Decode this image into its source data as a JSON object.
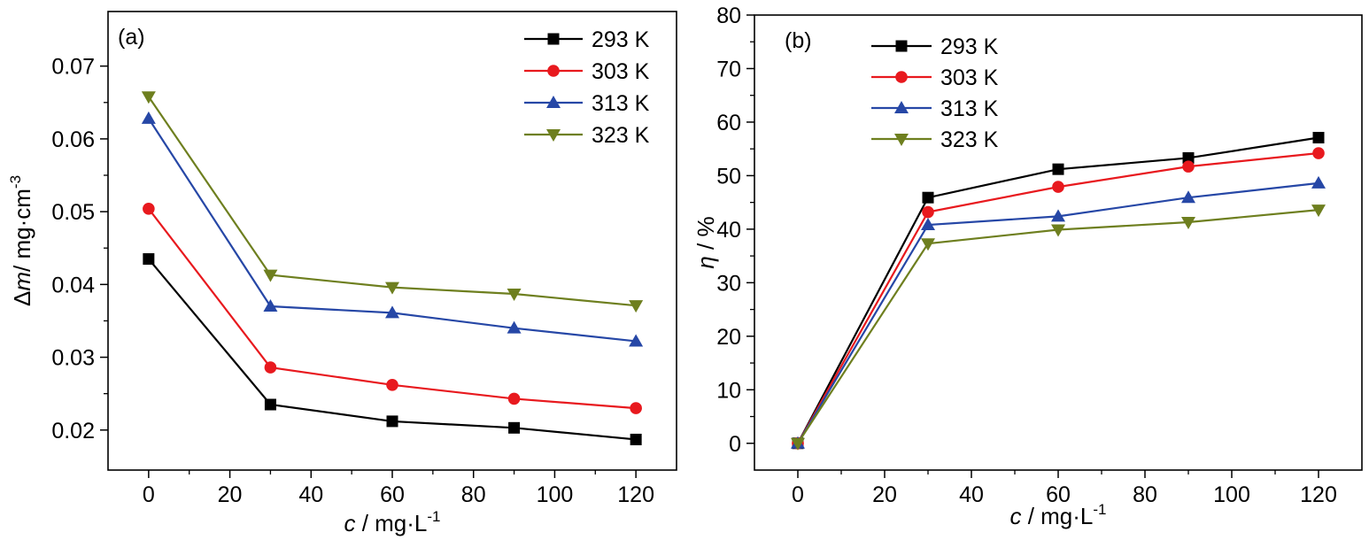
{
  "chart_data": [
    {
      "type": "line",
      "panel_label": "(a)",
      "ylabel_parts": {
        "delta": "Δ",
        "var": "m",
        "rest": "/ mg·cm",
        "sup": "-3"
      },
      "xlabel_parts": {
        "var": "c",
        "rest": " / mg·L",
        "sup": "-1"
      },
      "x": [
        0,
        30,
        60,
        90,
        120
      ],
      "xlim": [
        -10,
        130
      ],
      "ylim": [
        0.0145,
        0.0775
      ],
      "xticks": [
        0,
        20,
        40,
        60,
        80,
        100,
        120
      ],
      "xtick_labels": [
        "0",
        "20",
        "40",
        "60",
        "80",
        "100",
        "120"
      ],
      "yticks": [
        0.02,
        0.03,
        0.04,
        0.05,
        0.06,
        0.07
      ],
      "ytick_labels": [
        "0.02",
        "0.03",
        "0.04",
        "0.05",
        "0.06",
        "0.07"
      ],
      "grid": false,
      "legend_position": "top-right",
      "series": [
        {
          "name": "293 K",
          "color": "#000000",
          "marker": "square",
          "values": [
            0.0435,
            0.0235,
            0.0212,
            0.0203,
            0.0187
          ]
        },
        {
          "name": "303 K",
          "color": "#e8191e",
          "marker": "circle",
          "values": [
            0.0504,
            0.0286,
            0.0262,
            0.0243,
            0.023
          ]
        },
        {
          "name": "313 K",
          "color": "#2647a6",
          "marker": "triangle-up",
          "values": [
            0.0628,
            0.037,
            0.0361,
            0.034,
            0.0322
          ]
        },
        {
          "name": "323 K",
          "color": "#6e7f1f",
          "marker": "triangle-down",
          "values": [
            0.0658,
            0.0413,
            0.0396,
            0.0387,
            0.0371
          ]
        }
      ]
    },
    {
      "type": "line",
      "panel_label": "(b)",
      "ylabel_parts": {
        "var": "η",
        "rest": " / %"
      },
      "xlabel_parts": {
        "var": "c",
        "rest": " / mg·L",
        "sup": "-1"
      },
      "x": [
        0,
        30,
        60,
        90,
        120
      ],
      "xlim": [
        -10,
        130
      ],
      "ylim": [
        -5,
        80
      ],
      "xticks": [
        0,
        20,
        40,
        60,
        80,
        100,
        120
      ],
      "xtick_labels": [
        "0",
        "20",
        "40",
        "60",
        "80",
        "100",
        "120"
      ],
      "yticks": [
        0,
        10,
        20,
        30,
        40,
        50,
        60,
        70,
        80
      ],
      "ytick_labels": [
        "0",
        "10",
        "20",
        "30",
        "40",
        "50",
        "60",
        "70",
        "80"
      ],
      "grid": false,
      "legend_position": "top-left",
      "series": [
        {
          "name": "293 K",
          "color": "#000000",
          "marker": "square",
          "values": [
            0,
            45.9,
            51.2,
            53.3,
            57.1
          ]
        },
        {
          "name": "303 K",
          "color": "#e8191e",
          "marker": "circle",
          "values": [
            0,
            43.2,
            47.9,
            51.7,
            54.2
          ]
        },
        {
          "name": "313 K",
          "color": "#2647a6",
          "marker": "triangle-up",
          "values": [
            0,
            40.8,
            42.4,
            45.9,
            48.6
          ]
        },
        {
          "name": "323 K",
          "color": "#6e7f1f",
          "marker": "triangle-down",
          "values": [
            0,
            37.3,
            39.9,
            41.3,
            43.6
          ]
        }
      ]
    }
  ]
}
